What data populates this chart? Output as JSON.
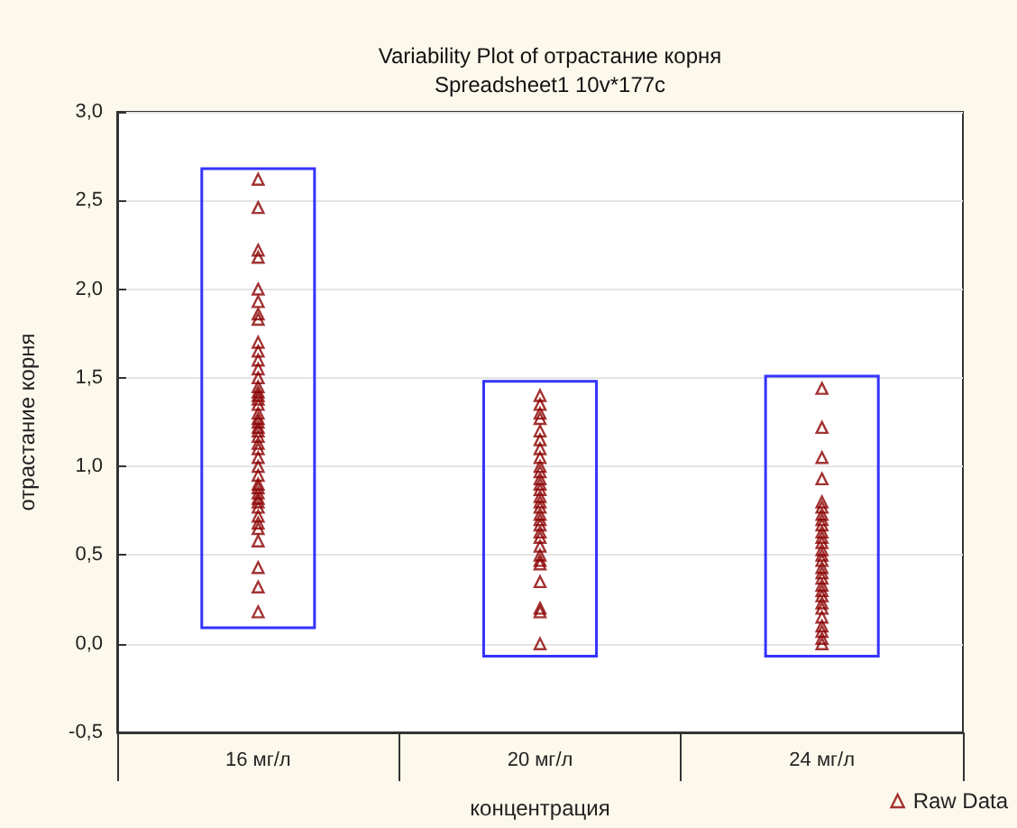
{
  "chart_data": {
    "type": "bar",
    "title": "Variability Plot of отрастание корня",
    "subtitle": "Spreadsheet1 10v*177c",
    "xlabel": "концентрация",
    "ylabel": "отрастание корня",
    "categories": [
      "16 мг/л",
      "20 мг/л",
      "24 мг/л"
    ],
    "ylim": [
      -0.5,
      3.0
    ],
    "yticks": [
      {
        "value": -0.5,
        "label": "-0,5"
      },
      {
        "value": 0,
        "label": "0,0"
      },
      {
        "value": 0.5,
        "label": "0,5"
      },
      {
        "value": 1.0,
        "label": "1,0"
      },
      {
        "value": 1.5,
        "label": "1,5"
      },
      {
        "value": 2.0,
        "label": "2,0"
      },
      {
        "value": 2.5,
        "label": "2,5"
      },
      {
        "value": 3.0,
        "label": "3,0"
      }
    ],
    "grid": "y",
    "legend": "bottom right",
    "series": [
      {
        "color": "#3333ff",
        "base": [
          0.09,
          -0.07,
          -0.07
        ],
        "values": [
          2.59,
          1.55,
          1.58
        ]
      },
      {
        "type": "scatter",
        "name": "Raw Data",
        "color": "#8b0000",
        "marker": "triangle",
        "x": [
          "16 мг/л",
          "16 мг/л",
          "16 мг/л",
          "16 мг/л",
          "16 мг/л",
          "16 мг/л",
          "16 мг/л",
          "16 мг/л",
          "16 мг/л",
          "16 мг/л",
          "16 мг/л",
          "16 мг/л",
          "16 мг/л",
          "16 мг/л",
          "16 мг/л",
          "16 мг/л",
          "16 мг/л",
          "16 мг/л",
          "16 мг/л",
          "16 мг/л",
          "16 мг/л",
          "16 мг/л",
          "16 мг/л",
          "16 мг/л",
          "16 мг/л",
          "16 мг/л",
          "16 мг/л",
          "16 мг/л",
          "16 мг/л",
          "16 мг/л",
          "16 мг/л",
          "16 мг/л",
          "16 мг/л",
          "16 мг/л",
          "16 мг/л",
          "16 мг/л",
          "16 мг/л",
          "16 мг/л",
          "16 мг/л",
          "16 мг/л",
          "16 мг/л",
          "16 мг/л",
          "20 мг/л",
          "20 мг/л",
          "20 мг/л",
          "20 мг/л",
          "20 мг/л",
          "20 мг/л",
          "20 мг/л",
          "20 мг/л",
          "20 мг/л",
          "20 мг/л",
          "20 мг/л",
          "20 мг/л",
          "20 мг/л",
          "20 мг/л",
          "20 мг/л",
          "20 мг/л",
          "20 мг/л",
          "20 мг/л",
          "20 мг/л",
          "20 мг/л",
          "20 мг/л",
          "20 мг/л",
          "20 мг/л",
          "20 мг/л",
          "20 мг/л",
          "20 мг/л",
          "20 мг/л",
          "20 мг/л",
          "20 мг/л",
          "24 мг/л",
          "24 мг/л",
          "24 мг/л",
          "24 мг/л",
          "24 мг/л",
          "24 мг/л",
          "24 мг/л",
          "24 мг/л",
          "24 мг/л",
          "24 мг/л",
          "24 мг/л",
          "24 мг/л",
          "24 мг/л",
          "24 мг/л",
          "24 мг/л",
          "24 мг/л",
          "24 мг/л",
          "24 мг/л",
          "24 мг/л",
          "24 мг/л",
          "24 мг/л",
          "24 мг/л",
          "24 мг/л",
          "24 мг/л",
          "24 мг/л",
          "24 мг/л",
          "24 мг/л",
          "24 мг/л"
        ],
        "values": [
          2.62,
          2.46,
          2.22,
          2.18,
          2.0,
          1.93,
          1.86,
          1.83,
          1.7,
          1.65,
          1.6,
          1.55,
          1.5,
          1.45,
          1.42,
          1.4,
          1.38,
          1.35,
          1.3,
          1.27,
          1.25,
          1.22,
          1.2,
          1.17,
          1.13,
          1.1,
          1.05,
          1.0,
          0.95,
          0.9,
          0.88,
          0.85,
          0.82,
          0.8,
          0.77,
          0.72,
          0.68,
          0.65,
          0.58,
          0.43,
          0.32,
          0.18,
          1.4,
          1.35,
          1.3,
          1.27,
          1.2,
          1.15,
          1.1,
          1.05,
          1.0,
          0.97,
          0.93,
          0.9,
          0.87,
          0.83,
          0.8,
          0.77,
          0.73,
          0.7,
          0.67,
          0.63,
          0.6,
          0.55,
          0.5,
          0.47,
          0.45,
          0.35,
          0.2,
          0.18,
          0.0,
          1.44,
          1.22,
          1.05,
          0.93,
          0.8,
          0.77,
          0.73,
          0.7,
          0.67,
          0.63,
          0.6,
          0.57,
          0.53,
          0.5,
          0.47,
          0.43,
          0.4,
          0.37,
          0.33,
          0.3,
          0.27,
          0.23,
          0.2,
          0.15,
          0.1,
          0.07,
          0.03,
          0.0
        ]
      }
    ]
  }
}
